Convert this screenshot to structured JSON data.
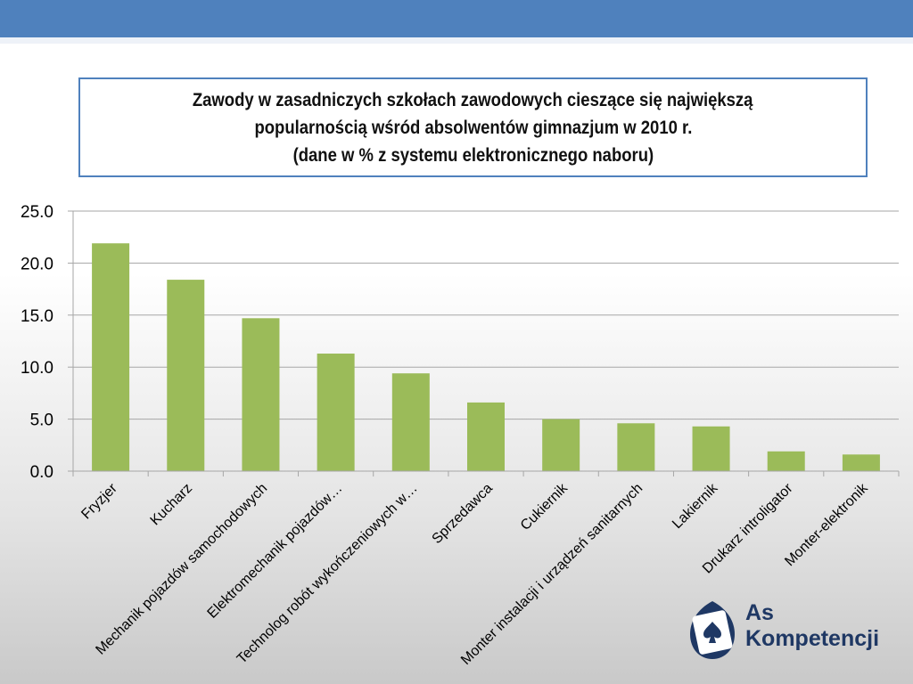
{
  "colors": {
    "header_bar": "#4f81bd",
    "bar": "#9bbb59",
    "title_border": "#4f81bd",
    "grid": "#a6a6a6",
    "logo": "#1f3864"
  },
  "title": {
    "line1": "Zawody w zasadniczych szkołach zawodowych  cieszące się największą",
    "line2": "popularnością wśród absolwentów gimnazjum  w 2010 r.",
    "line3": "(dane w % z systemu elektronicznego naboru)"
  },
  "chart_data": {
    "type": "bar",
    "categories": [
      "Fryzjer",
      "Kucharz",
      "Mechanik pojazdów samochodowych",
      "Elektromechanik pojazdów…",
      "Technolog robót wykończeniowych w…",
      "Sprzedawca",
      "Cukiernik",
      "Monter instalacji i urządzeń sanitarnych",
      "Lakiernik",
      "Drukarz introligator",
      "Monter-elektronik"
    ],
    "values": [
      21.9,
      18.4,
      14.7,
      11.3,
      9.4,
      6.6,
      5.0,
      4.6,
      4.3,
      1.9,
      1.6
    ],
    "ylim": [
      0,
      25
    ],
    "yticks": [
      "0.0",
      "5.0",
      "10.0",
      "15.0",
      "20.0",
      "25.0"
    ],
    "grid": true
  },
  "logo": {
    "line1": "As",
    "line2": "Kompetencji",
    "symbol": "spade-icon"
  }
}
